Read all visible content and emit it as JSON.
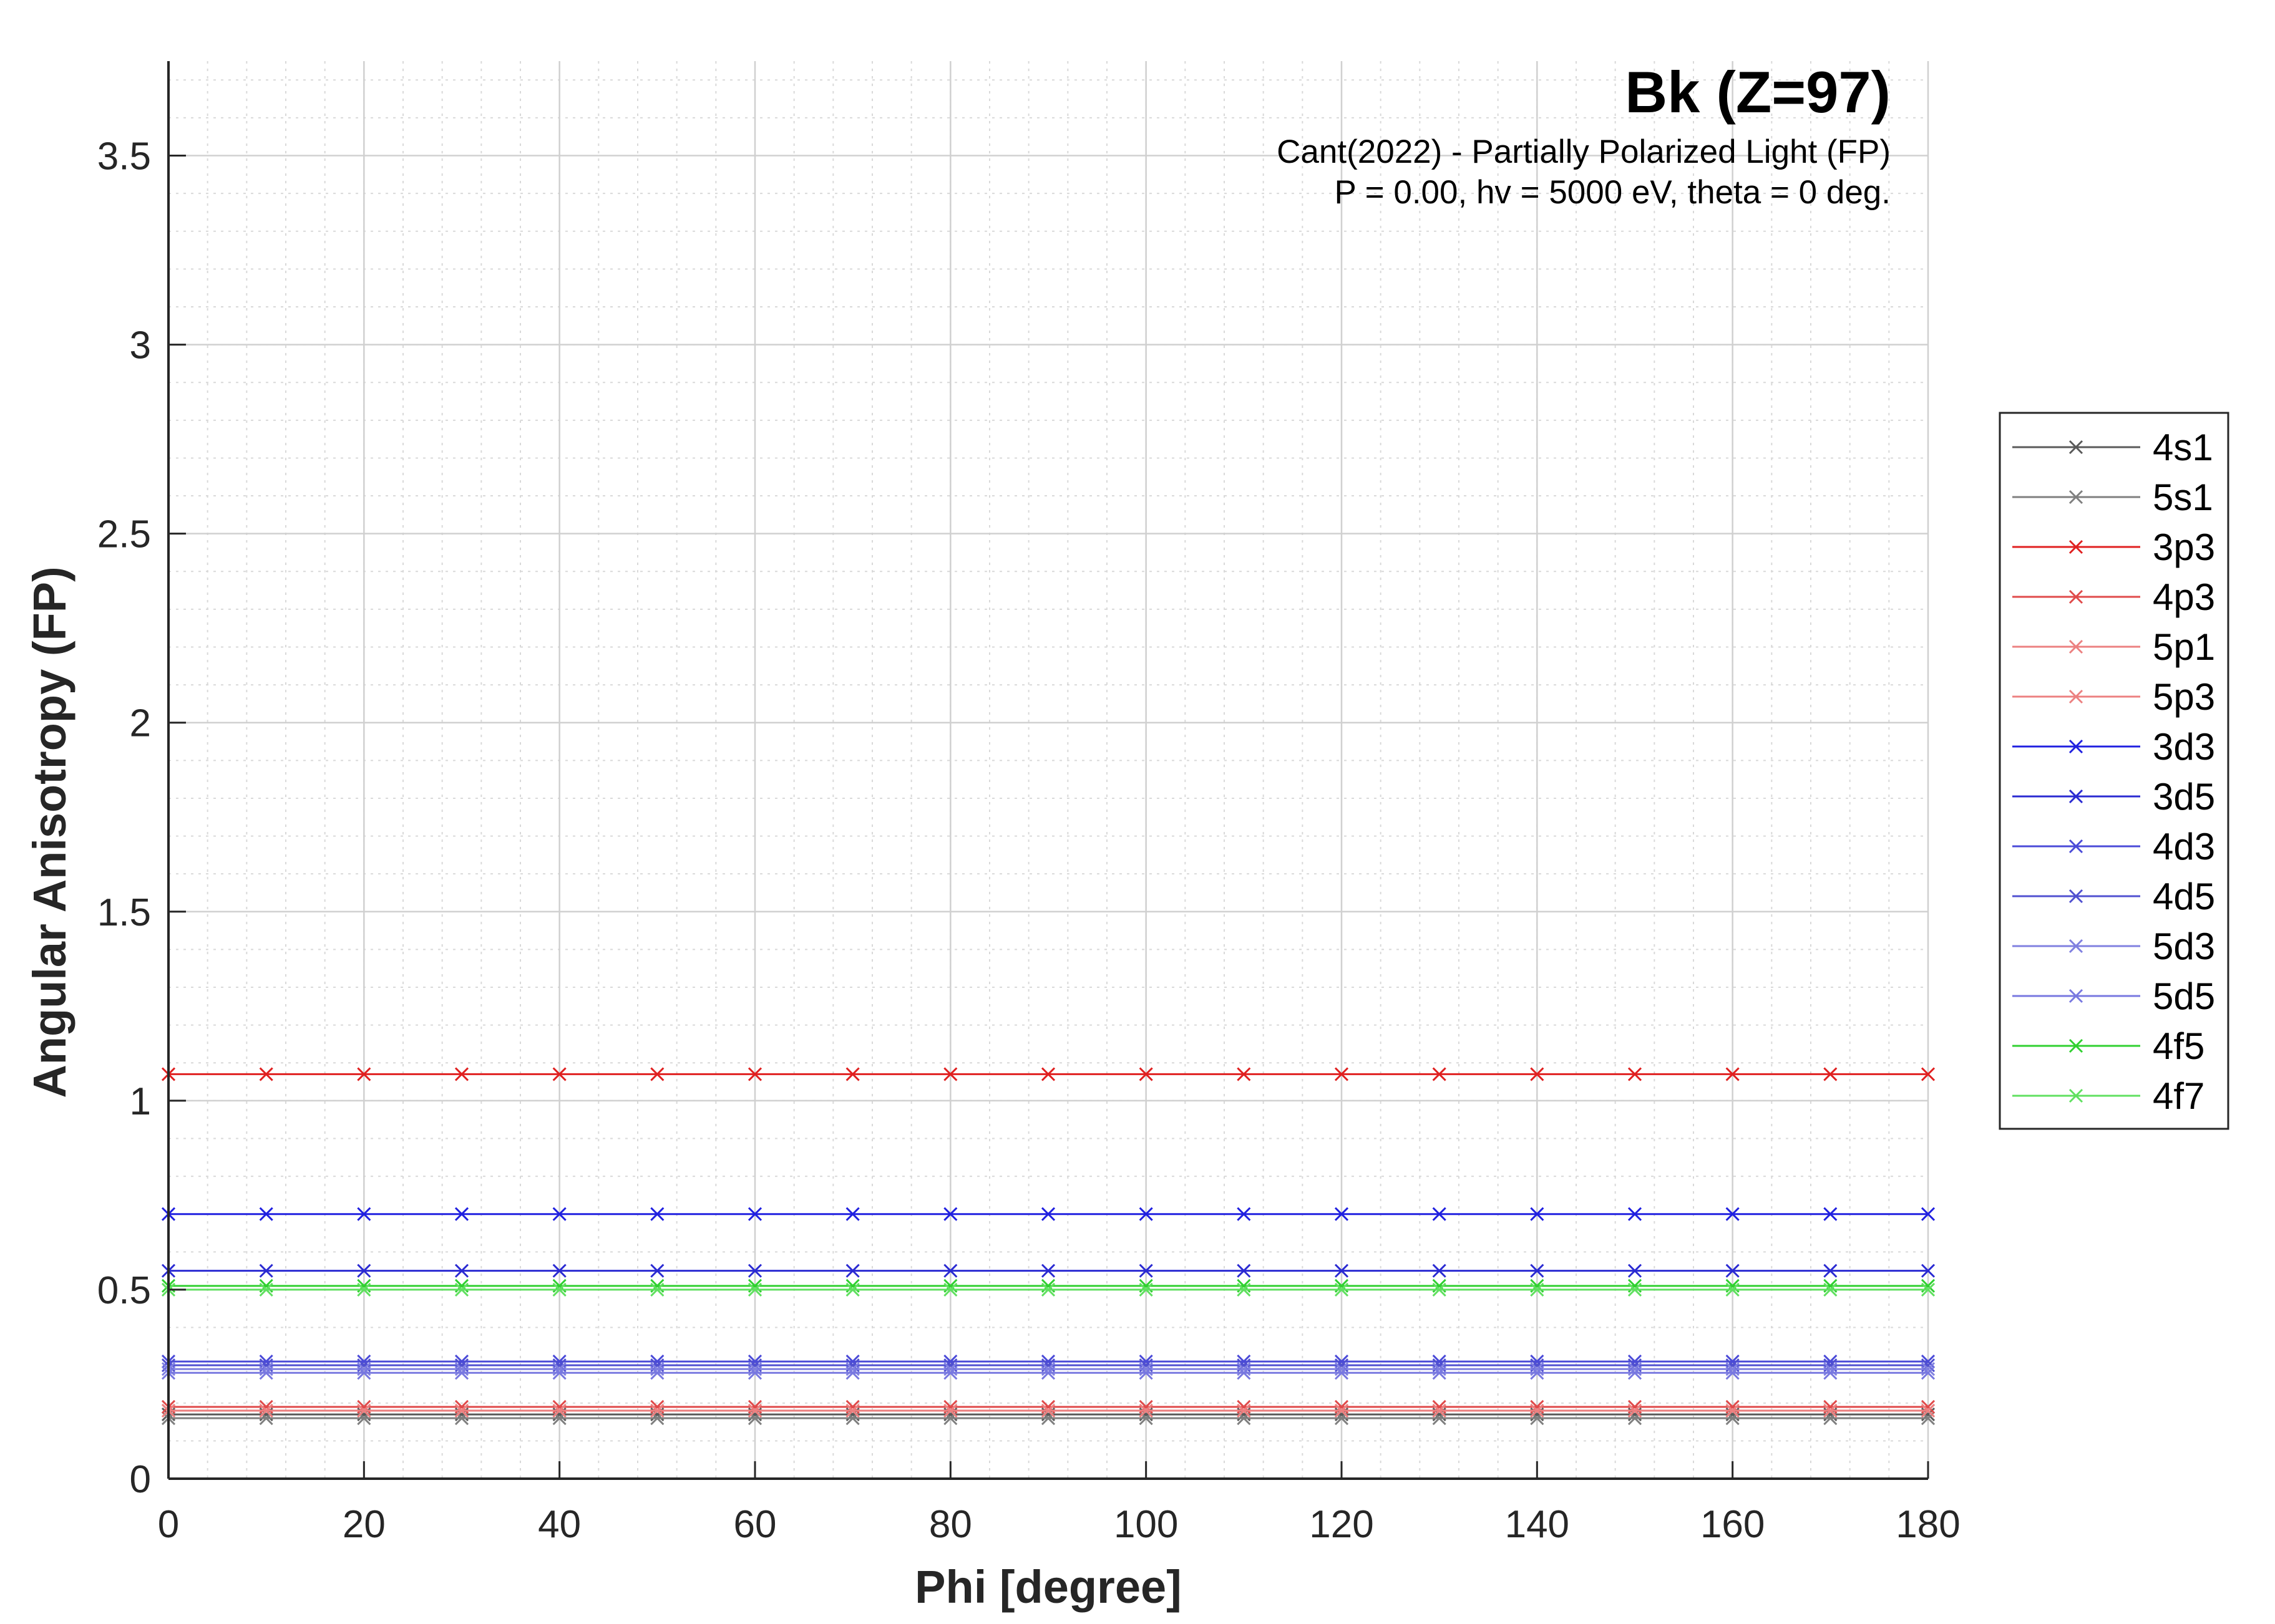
{
  "chart_data": {
    "type": "line",
    "title": "Bk (Z=97)",
    "subtitle_lines": [
      "Cant(2022) - Partially Polarized Light (FP)",
      "P = 0.00, hv = 5000 eV, theta = 0 deg."
    ],
    "xlabel": "Phi [degree]",
    "ylabel": "Angular Anisotropy (FP)",
    "xlim": [
      0,
      180
    ],
    "ylim": [
      0,
      3.75
    ],
    "xticks": [
      0,
      20,
      40,
      60,
      80,
      100,
      120,
      140,
      160,
      180
    ],
    "yticks": [
      0,
      0.5,
      1,
      1.5,
      2,
      2.5,
      3,
      3.5
    ],
    "xtick_labels": [
      "0",
      "20",
      "40",
      "60",
      "80",
      "100",
      "120",
      "140",
      "160",
      "180"
    ],
    "ytick_labels": [
      "0",
      "0.5",
      "1",
      "1.5",
      "2",
      "2.5",
      "3",
      "3.5"
    ],
    "grid": true,
    "minor_grid": true,
    "legend_position": "outside-right",
    "x": [
      0,
      10,
      20,
      30,
      40,
      50,
      60,
      70,
      80,
      90,
      100,
      110,
      120,
      130,
      140,
      150,
      160,
      170,
      180
    ],
    "series": [
      {
        "name": "4s1",
        "color": "#595959",
        "value": 0.17
      },
      {
        "name": "5s1",
        "color": "#7f7f7f",
        "value": 0.16
      },
      {
        "name": "3p3",
        "color": "#e02020",
        "value": 1.07
      },
      {
        "name": "4p3",
        "color": "#e04a4a",
        "value": 0.19
      },
      {
        "name": "5p1",
        "color": "#ec8080",
        "value": 0.18
      },
      {
        "name": "5p3",
        "color": "#ec8080",
        "value": 0.18
      },
      {
        "name": "3d3",
        "color": "#2020e0",
        "value": 0.7
      },
      {
        "name": "3d5",
        "color": "#2a2ad2",
        "value": 0.55
      },
      {
        "name": "4d3",
        "color": "#4a4ad8",
        "value": 0.31
      },
      {
        "name": "4d5",
        "color": "#5050d0",
        "value": 0.3
      },
      {
        "name": "5d3",
        "color": "#8080e0",
        "value": 0.29
      },
      {
        "name": "5d5",
        "color": "#7878e0",
        "value": 0.28
      },
      {
        "name": "4f5",
        "color": "#30d030",
        "value": 0.51
      },
      {
        "name": "4f7",
        "color": "#60e060",
        "value": 0.5
      }
    ]
  }
}
